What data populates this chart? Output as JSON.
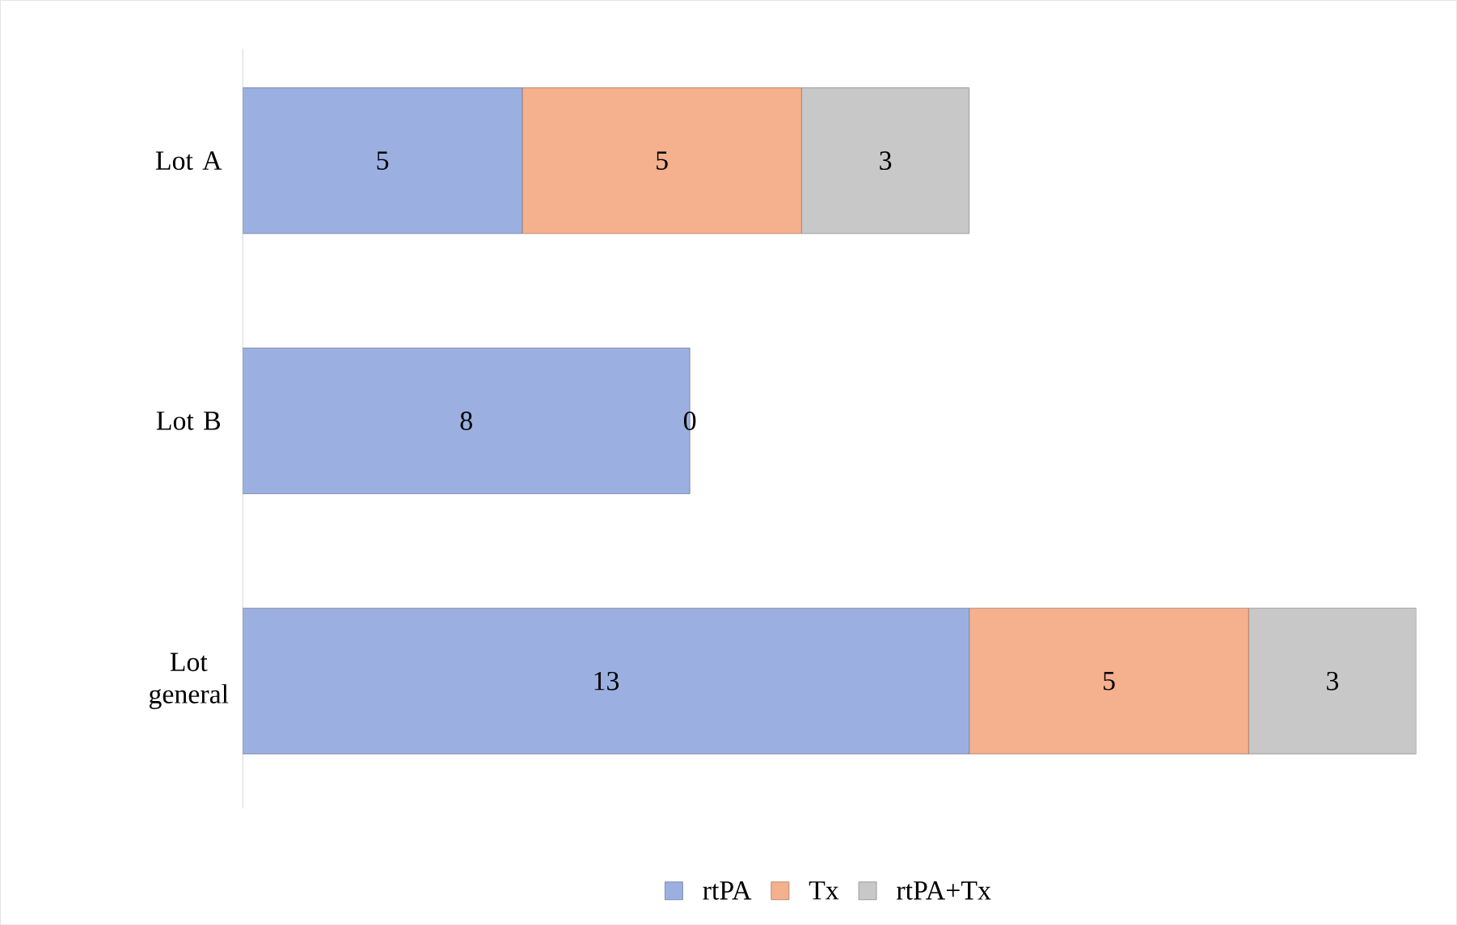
{
  "chart_data": {
    "type": "bar",
    "orientation": "horizontal",
    "stacked": true,
    "legend": "bottom",
    "categories": [
      "Lot A",
      "Lot B",
      "Lot general"
    ],
    "series": [
      {
        "name": "rtPA",
        "color": "#9bb0e0",
        "values": [
          5,
          8,
          13
        ],
        "value_labels": [
          "5",
          "8",
          "13"
        ]
      },
      {
        "name": "Tx",
        "color": "#f5b08e",
        "values": [
          5,
          0,
          5
        ],
        "value_labels": [
          "5",
          "0",
          "5"
        ]
      },
      {
        "name": "rtPA+Tx",
        "color": "#c8c8c8",
        "values": [
          3,
          0,
          3
        ],
        "value_labels": [
          "3",
          null,
          "3"
        ]
      }
    ]
  }
}
